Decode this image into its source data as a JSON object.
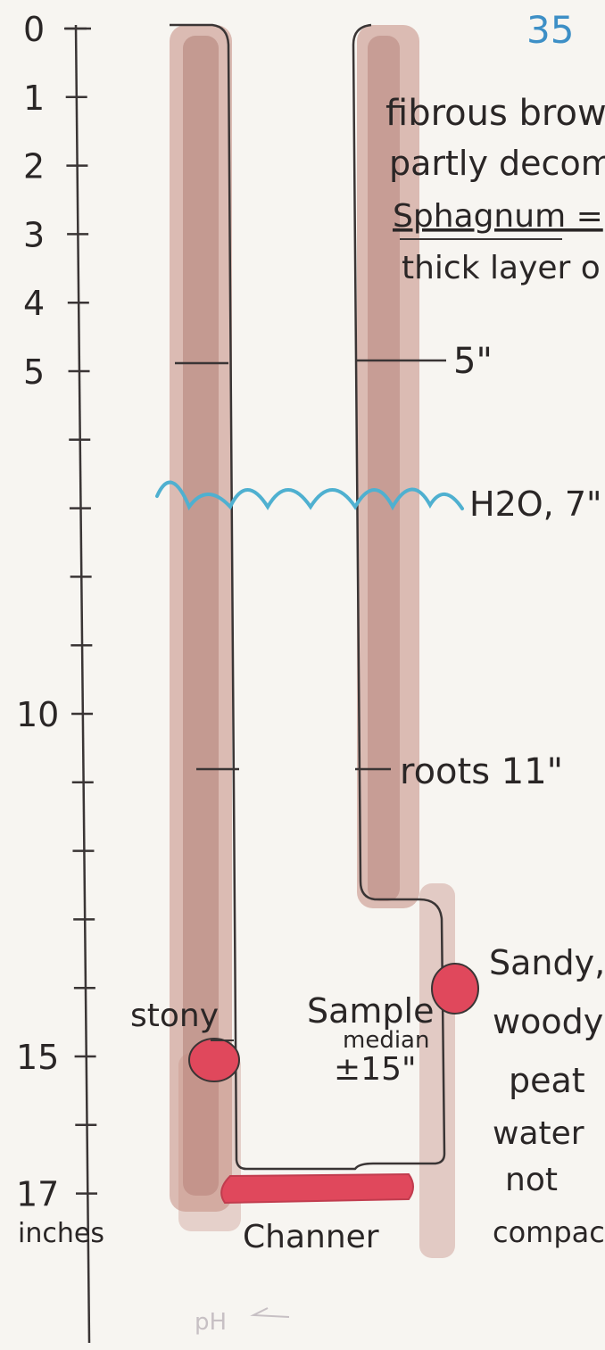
{
  "page_label": "35",
  "scale": {
    "unit_label": "inches",
    "ticks": [
      {
        "value": 0,
        "label": "0"
      },
      {
        "value": 1,
        "label": "1"
      },
      {
        "value": 2,
        "label": "2"
      },
      {
        "value": 3,
        "label": "3"
      },
      {
        "value": 4,
        "label": "4"
      },
      {
        "value": 5,
        "label": "5"
      },
      {
        "value": 6,
        "label": ""
      },
      {
        "value": 7,
        "label": ""
      },
      {
        "value": 8,
        "label": ""
      },
      {
        "value": 9,
        "label": ""
      },
      {
        "value": 10,
        "label": "10"
      },
      {
        "value": 11,
        "label": ""
      },
      {
        "value": 12,
        "label": ""
      },
      {
        "value": 13,
        "label": ""
      },
      {
        "value": 14,
        "label": ""
      },
      {
        "value": 15,
        "label": "15"
      },
      {
        "value": 16,
        "label": ""
      },
      {
        "value": 17,
        "label": "17"
      }
    ]
  },
  "description_top": [
    "fibrous brow",
    "partly decom",
    "Sphagnum =",
    "thick layer o"
  ],
  "markers": {
    "depth_5": "5\"",
    "water_table": "H2O, 7\"",
    "roots": "roots 11\""
  },
  "labels": {
    "stony": "stony",
    "sample_lines": [
      "Sample",
      "median",
      "±15\""
    ],
    "sandy_lines": [
      "Sandy,",
      "woody",
      "peat",
      "water",
      "not",
      "compact"
    ],
    "base": "Channer",
    "ph": "pH"
  },
  "colors": {
    "peat": "#a86a5e",
    "peat_dark": "#8f4f45",
    "water": "#4fb0d0",
    "sample": "#e0485c",
    "ink": "#2a2626",
    "page_label": "#3d8fc6"
  }
}
